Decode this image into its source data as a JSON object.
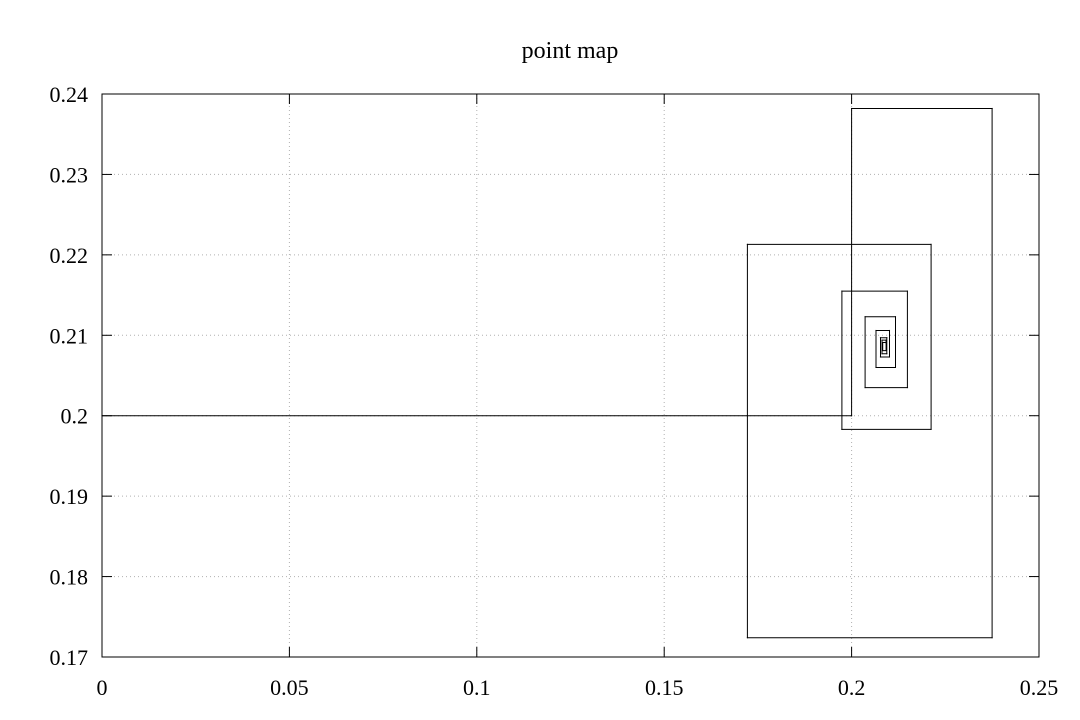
{
  "chart_data": {
    "type": "line",
    "title": "point map",
    "xlabel": "",
    "ylabel": "",
    "xlim": [
      0,
      0.25
    ],
    "ylim": [
      0.17,
      0.24
    ],
    "x_ticks": [
      "0",
      "0.05",
      "0.1",
      "0.15",
      "0.2",
      "0.25"
    ],
    "y_ticks": [
      "0.17",
      "0.18",
      "0.19",
      "0.2",
      "0.21",
      "0.22",
      "0.23",
      "0.24"
    ],
    "grid": true,
    "legend": "none",
    "series": [
      {
        "color": "#000000",
        "x": [
          0.0,
          0.2,
          0.2,
          0.2375,
          0.2375,
          0.1722,
          0.1722,
          0.2212,
          0.2212,
          0.1974,
          0.1974,
          0.2149,
          0.2149,
          0.2036,
          0.2036,
          0.2117,
          0.2117,
          0.2065,
          0.2065,
          0.2101,
          0.2101,
          0.2077,
          0.2077,
          0.2094,
          0.2094,
          0.2081,
          0.2081,
          0.2092,
          0.2092,
          0.2083,
          0.2083,
          0.209
        ],
        "y": [
          0.2,
          0.2,
          0.2382,
          0.2382,
          0.1724,
          0.1724,
          0.2213,
          0.2213,
          0.1983,
          0.1983,
          0.2155,
          0.2155,
          0.2035,
          0.2035,
          0.2123,
          0.2123,
          0.206,
          0.206,
          0.2106,
          0.2106,
          0.2073,
          0.2073,
          0.2097,
          0.2097,
          0.2077,
          0.2077,
          0.2094,
          0.2094,
          0.2081,
          0.2081,
          0.2091,
          0.2091
        ]
      }
    ]
  }
}
